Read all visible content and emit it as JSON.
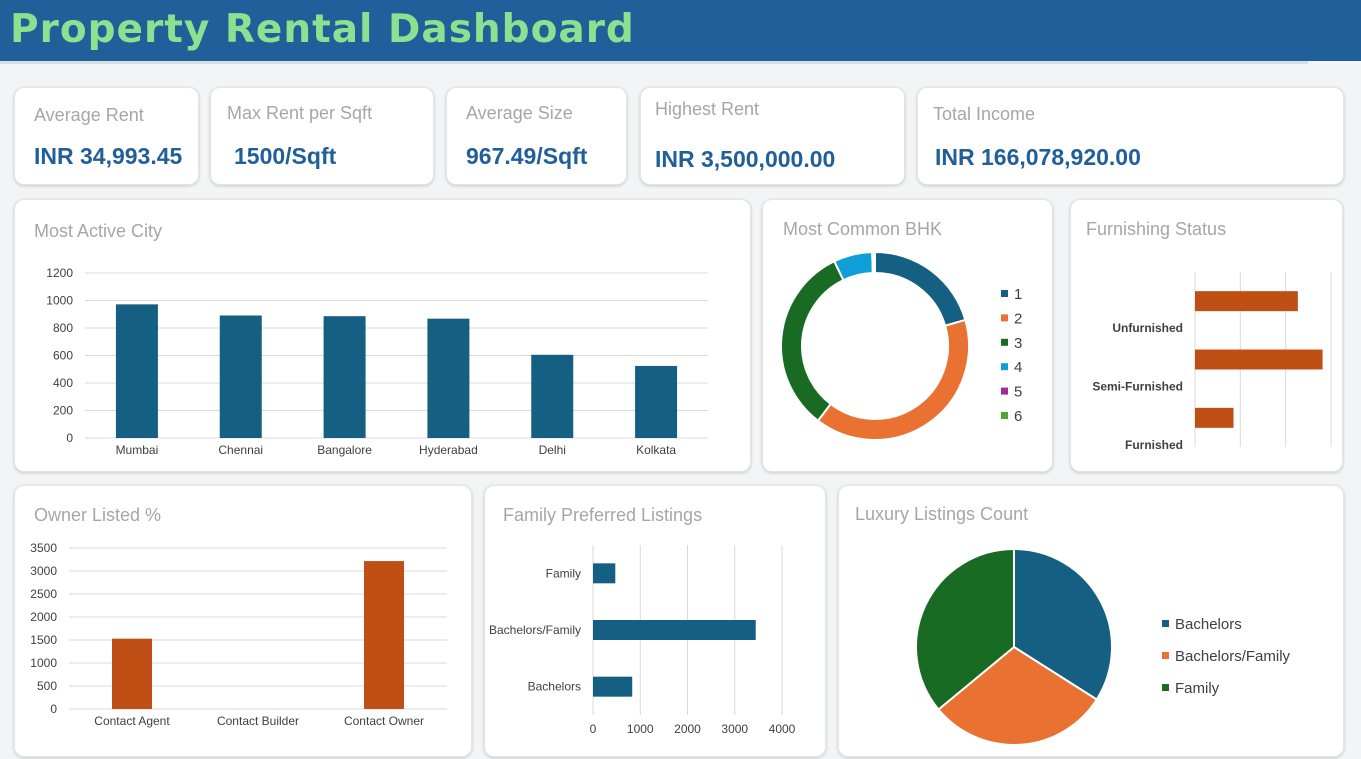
{
  "header": {
    "title": "Property Rental Dashboard"
  },
  "kpis": [
    {
      "label": "Average Rent",
      "value": "INR 34,993.45"
    },
    {
      "label": "Max Rent per Sqft",
      "value": "1500/Sqft"
    },
    {
      "label": "Average Size",
      "value": "967.49/Sqft"
    },
    {
      "label": "Highest Rent",
      "value": "INR 3,500,000.00"
    },
    {
      "label": "Total Income",
      "value": "INR 166,078,920.00"
    }
  ],
  "panels": {
    "city": "Most Active City",
    "bhk": "Most Common BHK",
    "furnishing": "Furnishing Status",
    "owner": "Owner Listed %",
    "family": "Family Preferred Listings",
    "luxury": "Luxury Listings Count"
  },
  "colors": {
    "blue": "#156082",
    "orange": "#e97132",
    "green": "#196b24",
    "rust": "#c04f15",
    "teal": "#0f9ed5",
    "purple": "#a02b93",
    "lightgreen": "#4ea72e"
  },
  "chart_data": [
    {
      "id": "city",
      "type": "bar",
      "categories": [
        "Mumbai",
        "Chennai",
        "Bangalore",
        "Hyderabad",
        "Delhi",
        "Kolkata"
      ],
      "values": [
        972,
        891,
        886,
        868,
        605,
        524
      ],
      "ylim": [
        0,
        1200
      ],
      "yticks": [
        0,
        200,
        400,
        600,
        800,
        1000,
        1200
      ],
      "grid": true
    },
    {
      "id": "bhk",
      "type": "pie",
      "donut": true,
      "labels": [
        "1",
        "2",
        "3",
        "4",
        "5",
        "6"
      ],
      "values": [
        1167,
        2265,
        1847,
        378,
        19,
        8
      ],
      "legend": "right"
    },
    {
      "id": "furnishing",
      "type": "bar",
      "orientation": "horizontal",
      "categories": [
        "Unfurnished",
        "Semi-Furnished",
        "Furnished"
      ],
      "values": [
        1815,
        2251,
        680
      ],
      "grid": true
    },
    {
      "id": "owner",
      "type": "bar",
      "categories": [
        "Contact Agent",
        "Contact Builder",
        "Contact Owner"
      ],
      "values": [
        1529,
        1,
        3216
      ],
      "ylim": [
        0,
        3500
      ],
      "yticks": [
        0,
        500,
        1000,
        1500,
        2000,
        2500,
        3000,
        3500
      ],
      "grid": true
    },
    {
      "id": "family",
      "type": "bar",
      "orientation": "horizontal",
      "categories": [
        "Family",
        "Bachelors/Family",
        "Bachelors"
      ],
      "values": [
        472,
        3444,
        830
      ],
      "xlim": [
        0,
        4000
      ],
      "xticks": [
        0,
        1000,
        2000,
        3000,
        4000
      ],
      "grid": true
    },
    {
      "id": "luxury",
      "type": "pie",
      "labels": [
        "Bachelors",
        "Bachelors/Family",
        "Family"
      ],
      "values": [
        34,
        30,
        36
      ],
      "legend": "right"
    }
  ]
}
